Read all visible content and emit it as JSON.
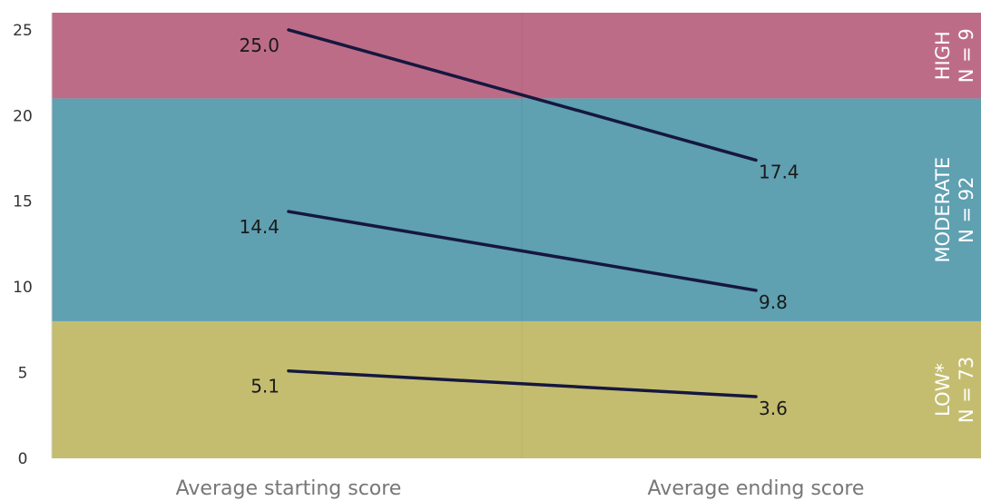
{
  "chart_data": {
    "type": "line",
    "categories": [
      "Average starting score",
      "Average ending score"
    ],
    "series": [
      {
        "values": [
          25.0,
          17.4
        ],
        "labels": [
          "25.0",
          "17.4"
        ]
      },
      {
        "values": [
          14.4,
          9.8
        ],
        "labels": [
          "14.4",
          "9.8"
        ]
      },
      {
        "values": [
          5.1,
          3.6
        ],
        "labels": [
          "5.1",
          "3.6"
        ]
      }
    ],
    "ylim": [
      0,
      26
    ],
    "yticks": [
      "0",
      "5",
      "10",
      "15",
      "20",
      "25"
    ],
    "bands": [
      {
        "name": "LOW*",
        "count": "N = 73",
        "from": 0,
        "to": 8,
        "color": "#c4bd6f"
      },
      {
        "name": "MODERATE",
        "count": "N = 92",
        "from": 8,
        "to": 21,
        "color": "#5fa0b1"
      },
      {
        "name": "HIGH",
        "count": "N = 9",
        "from": 21,
        "to": 26,
        "color": "#bd6c87"
      }
    ],
    "line_color": "#16173f",
    "grid": false,
    "title": "",
    "xlabel": "",
    "ylabel": ""
  }
}
